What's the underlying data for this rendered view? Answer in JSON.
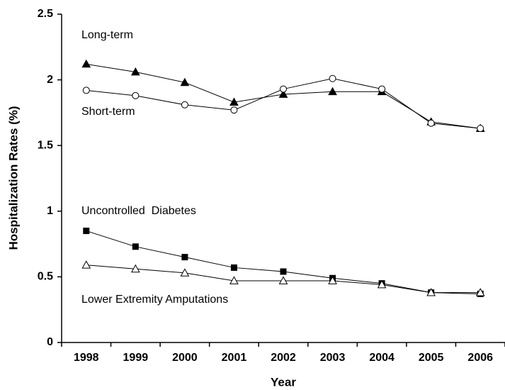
{
  "chart_data": {
    "type": "line",
    "x_label": "Year",
    "y_label": "Hospitalization Rates (%)",
    "categories": [
      "1998",
      "1999",
      "2000",
      "2001",
      "2002",
      "2003",
      "2004",
      "2005",
      "2006"
    ],
    "ylim": [
      0,
      2.5
    ],
    "yticks": [
      0,
      0.5,
      1,
      1.5,
      2,
      2.5
    ],
    "series": [
      {
        "name": "Long-term",
        "color": "#000000",
        "marker": "triangle",
        "values": [
          2.12,
          2.06,
          1.98,
          1.83,
          1.89,
          1.91,
          1.91,
          1.68,
          1.63
        ]
      },
      {
        "name": "Short-term",
        "color": "#000000",
        "marker": "open-circle",
        "values": [
          1.92,
          1.88,
          1.81,
          1.77,
          1.93,
          2.01,
          1.93,
          1.67,
          1.63
        ]
      },
      {
        "name": "Uncontrolled  Diabetes",
        "color": "#000000",
        "marker": "square",
        "values": [
          0.85,
          0.73,
          0.65,
          0.57,
          0.54,
          0.49,
          0.45,
          0.38,
          0.37
        ]
      },
      {
        "name": "Lower Extremity Amputations",
        "color": "#000000",
        "marker": "open-triangle",
        "values": [
          0.59,
          0.56,
          0.53,
          0.47,
          0.47,
          0.47,
          0.44,
          0.38,
          0.38
        ]
      }
    ]
  }
}
